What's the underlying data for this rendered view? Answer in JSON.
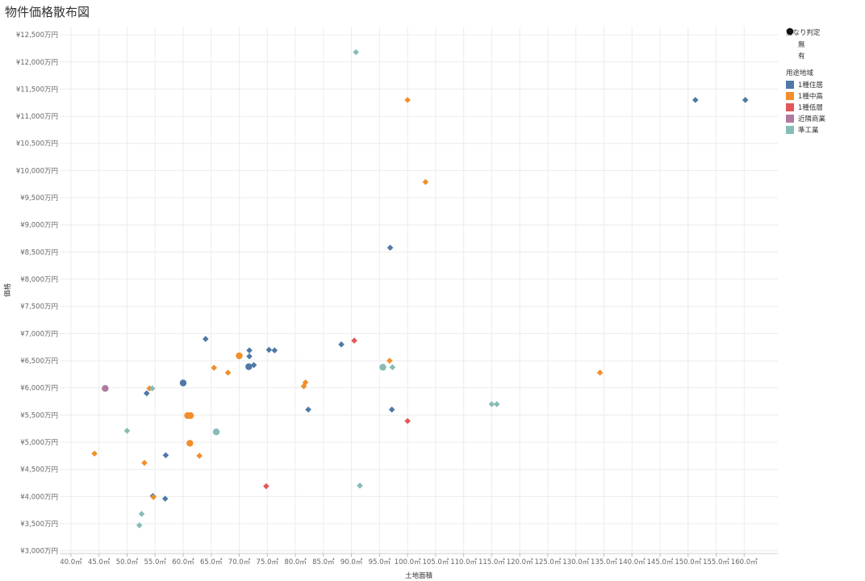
{
  "title": "物件価格散布図",
  "chart_data": {
    "type": "scatter",
    "title": "物件価格散布図",
    "xlabel": "土地面積",
    "ylabel": "価格",
    "xlim": [
      38,
      166
    ],
    "ylim": [
      2950,
      12650
    ],
    "x_ticks": [
      40,
      45,
      50,
      55,
      60,
      65,
      70,
      75,
      80,
      85,
      90,
      95,
      100,
      105,
      110,
      115,
      120,
      125,
      130,
      135,
      140,
      145,
      150,
      155,
      160
    ],
    "x_tick_labels": [
      "40.0㎡",
      "45.0㎡",
      "50.0㎡",
      "55.0㎡",
      "60.0㎡",
      "65.0㎡",
      "70.0㎡",
      "75.0㎡",
      "80.0㎡",
      "85.0㎡",
      "90.0㎡",
      "95.0㎡",
      "100.0㎡",
      "105.0㎡",
      "110.0㎡",
      "115.0㎡",
      "120.0㎡",
      "125.0㎡",
      "130.0㎡",
      "135.0㎡",
      "140.0㎡",
      "145.0㎡",
      "150.0㎡",
      "155.0㎡",
      "160.0㎡"
    ],
    "y_ticks": [
      3000,
      3500,
      4000,
      4500,
      5000,
      5500,
      6000,
      6500,
      7000,
      7500,
      8000,
      8500,
      9000,
      9500,
      10000,
      10500,
      11000,
      11500,
      12000,
      12500
    ],
    "y_tick_labels": [
      "¥3,000万円",
      "¥3,500万円",
      "¥4,000万円",
      "¥4,500万円",
      "¥5,000万円",
      "¥5,500万円",
      "¥6,000万円",
      "¥6,500万円",
      "¥7,000万円",
      "¥7,500万円",
      "¥8,000万円",
      "¥8,500万円",
      "¥9,000万円",
      "¥9,500万円",
      "¥10,000万円",
      "¥10,500万円",
      "¥11,000万円",
      "¥11,500万円",
      "¥12,000万円",
      "¥12,500万円"
    ],
    "grid": true,
    "legend_placement": "right",
    "shape_legend": {
      "title": "重なり判定",
      "items": [
        {
          "label": "無",
          "shape": "diamond"
        },
        {
          "label": "有",
          "shape": "circle"
        }
      ]
    },
    "color_legend": {
      "title": "用途地域",
      "items": [
        {
          "label": "1種住居",
          "color": "#4e79a7"
        },
        {
          "label": "1種中高",
          "color": "#f28e2b"
        },
        {
          "label": "1種低層",
          "color": "#e15759"
        },
        {
          "label": "近隣商業",
          "color": "#b07aa1"
        },
        {
          "label": "準工業",
          "color": "#86bcb6"
        }
      ]
    },
    "points": [
      {
        "x": 64.0,
        "y": 6900,
        "zone": "1種住居",
        "overlap": "無"
      },
      {
        "x": 71.8,
        "y": 6690,
        "zone": "1種住居",
        "overlap": "無"
      },
      {
        "x": 71.8,
        "y": 6580,
        "zone": "1種住居",
        "overlap": "無"
      },
      {
        "x": 72.6,
        "y": 6420,
        "zone": "1種住居",
        "overlap": "無"
      },
      {
        "x": 71.7,
        "y": 6390,
        "zone": "1種住居",
        "overlap": "有"
      },
      {
        "x": 75.3,
        "y": 6700,
        "zone": "1種住居",
        "overlap": "無"
      },
      {
        "x": 76.3,
        "y": 6690,
        "zone": "1種住居",
        "overlap": "無"
      },
      {
        "x": 88.2,
        "y": 6800,
        "zone": "1種住居",
        "overlap": "無"
      },
      {
        "x": 60.0,
        "y": 6090,
        "zone": "1種住居",
        "overlap": "有"
      },
      {
        "x": 53.5,
        "y": 5900,
        "zone": "1種住居",
        "overlap": "無"
      },
      {
        "x": 82.3,
        "y": 5600,
        "zone": "1種住居",
        "overlap": "無"
      },
      {
        "x": 97.2,
        "y": 5600,
        "zone": "1種住居",
        "overlap": "無"
      },
      {
        "x": 96.9,
        "y": 8580,
        "zone": "1種住居",
        "overlap": "無"
      },
      {
        "x": 56.9,
        "y": 4760,
        "zone": "1種住居",
        "overlap": "無"
      },
      {
        "x": 54.6,
        "y": 4010,
        "zone": "1種住居",
        "overlap": "無"
      },
      {
        "x": 56.8,
        "y": 3960,
        "zone": "1種住居",
        "overlap": "無"
      },
      {
        "x": 151.3,
        "y": 11300,
        "zone": "1種住居",
        "overlap": "無"
      },
      {
        "x": 160.2,
        "y": 11300,
        "zone": "1種住居",
        "overlap": "無"
      },
      {
        "x": 100.0,
        "y": 11300,
        "zone": "1種中高",
        "overlap": "無"
      },
      {
        "x": 103.2,
        "y": 9790,
        "zone": "1種中高",
        "overlap": "無"
      },
      {
        "x": 70.0,
        "y": 6590,
        "zone": "1種中高",
        "overlap": "有"
      },
      {
        "x": 96.8,
        "y": 6500,
        "zone": "1種中高",
        "overlap": "無"
      },
      {
        "x": 65.5,
        "y": 6370,
        "zone": "1種中高",
        "overlap": "無"
      },
      {
        "x": 68.0,
        "y": 6280,
        "zone": "1種中高",
        "overlap": "無"
      },
      {
        "x": 81.8,
        "y": 6100,
        "zone": "1種中高",
        "overlap": "無"
      },
      {
        "x": 81.5,
        "y": 6030,
        "zone": "1種中高",
        "overlap": "無"
      },
      {
        "x": 54.0,
        "y": 5990,
        "zone": "1種中高",
        "overlap": "無"
      },
      {
        "x": 134.3,
        "y": 6280,
        "zone": "1種中高",
        "overlap": "無"
      },
      {
        "x": 60.8,
        "y": 5490,
        "zone": "1種中高",
        "overlap": "有"
      },
      {
        "x": 61.3,
        "y": 5490,
        "zone": "1種中高",
        "overlap": "有"
      },
      {
        "x": 61.2,
        "y": 4980,
        "zone": "1種中高",
        "overlap": "有"
      },
      {
        "x": 44.2,
        "y": 4790,
        "zone": "1種中高",
        "overlap": "無"
      },
      {
        "x": 62.9,
        "y": 4750,
        "zone": "1種中高",
        "overlap": "無"
      },
      {
        "x": 53.1,
        "y": 4620,
        "zone": "1種中高",
        "overlap": "無"
      },
      {
        "x": 54.7,
        "y": 3990,
        "zone": "1種中高",
        "overlap": "無"
      },
      {
        "x": 90.5,
        "y": 6870,
        "zone": "1種低層",
        "overlap": "無"
      },
      {
        "x": 100.0,
        "y": 5390,
        "zone": "1種低層",
        "overlap": "無"
      },
      {
        "x": 74.8,
        "y": 4190,
        "zone": "1種低層",
        "overlap": "無"
      },
      {
        "x": 46.1,
        "y": 5990,
        "zone": "近隣商業",
        "overlap": "有"
      },
      {
        "x": 90.8,
        "y": 12180,
        "zone": "準工業",
        "overlap": "無"
      },
      {
        "x": 95.6,
        "y": 6380,
        "zone": "準工業",
        "overlap": "有"
      },
      {
        "x": 97.3,
        "y": 6380,
        "zone": "準工業",
        "overlap": "無"
      },
      {
        "x": 54.5,
        "y": 5990,
        "zone": "準工業",
        "overlap": "無"
      },
      {
        "x": 115.0,
        "y": 5700,
        "zone": "準工業",
        "overlap": "無"
      },
      {
        "x": 115.9,
        "y": 5700,
        "zone": "準工業",
        "overlap": "無"
      },
      {
        "x": 50.0,
        "y": 5210,
        "zone": "準工業",
        "overlap": "無"
      },
      {
        "x": 65.9,
        "y": 5190,
        "zone": "準工業",
        "overlap": "有"
      },
      {
        "x": 91.5,
        "y": 4200,
        "zone": "準工業",
        "overlap": "無"
      },
      {
        "x": 52.6,
        "y": 3680,
        "zone": "準工業",
        "overlap": "無"
      },
      {
        "x": 52.2,
        "y": 3470,
        "zone": "準工業",
        "overlap": "無"
      }
    ]
  }
}
